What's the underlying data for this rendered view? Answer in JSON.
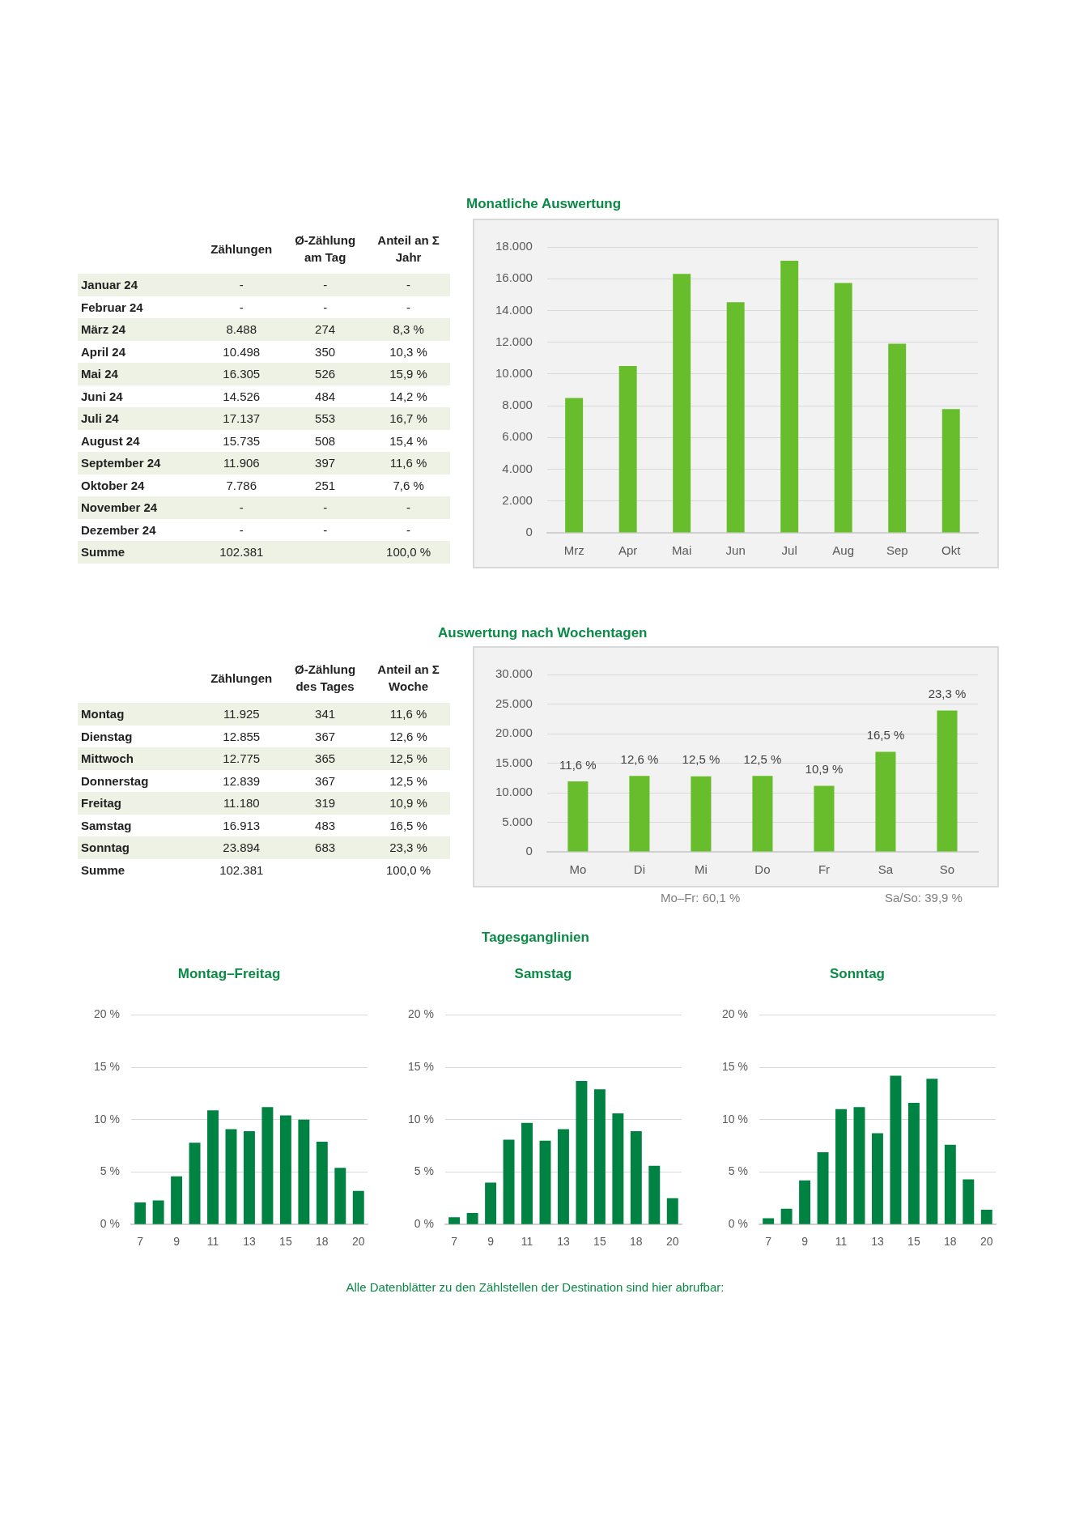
{
  "chart_data": [
    {
      "type": "other",
      "categories": [
        "Zählungen",
        "Ø-Zählung am Tag",
        "Anteil an Σ Jahr"
      ],
      "y_categories": [
        "Januar 24",
        "Februar 24",
        "März 24",
        "April 24",
        "Mai 24",
        "Juni 24",
        "Juli 24",
        "August 24",
        "September 24",
        "Oktober 24",
        "November 24",
        "Dezember 24",
        "Summe"
      ],
      "cell_labels": [
        [
          "-",
          "-",
          "-"
        ],
        [
          "-",
          "-",
          "-"
        ],
        [
          "8.488",
          "274",
          "8,3 %"
        ],
        [
          "10.498",
          "350",
          "10,3 %"
        ],
        [
          "16.305",
          "526",
          "15,9 %"
        ],
        [
          "14.526",
          "484",
          "14,2 %"
        ],
        [
          "17.137",
          "553",
          "16,7 %"
        ],
        [
          "15.735",
          "508",
          "15,4 %"
        ],
        [
          "11.906",
          "397",
          "11,6 %"
        ],
        [
          "7.786",
          "251",
          "7,6 %"
        ],
        [
          "-",
          "-",
          "-"
        ],
        [
          "-",
          "-",
          "-"
        ],
        [
          "102.381",
          null,
          "100,0 %"
        ]
      ]
    },
    {
      "type": "bar",
      "title": "Monatliche Auswertung",
      "categories": [
        "Mrz",
        "Apr",
        "Mai",
        "Jun",
        "Jul",
        "Aug",
        "Sep",
        "Okt"
      ],
      "values": [
        8488,
        10498,
        16305,
        14526,
        17137,
        15735,
        11906,
        7786
      ],
      "color": "#67bd2b",
      "ylim": [
        0,
        18000
      ],
      "yticks": [
        0,
        {
          "value": 2000,
          "label": "2.000"
        },
        {
          "value": 4000,
          "label": "4.000"
        },
        {
          "value": 6000,
          "label": "6.000"
        },
        {
          "value": 8000,
          "label": "8.000"
        },
        {
          "value": 10000,
          "label": "10.000"
        },
        {
          "value": 12000,
          "label": "12.000"
        },
        {
          "value": 14000,
          "label": "14.000"
        },
        {
          "value": 16000,
          "label": "16.000"
        },
        {
          "value": 18000,
          "label": "18.000"
        }
      ],
      "grid": "y"
    },
    {
      "type": "other",
      "categories": [
        "Zählungen",
        "Ø-Zählung des Tages",
        "Anteil an Σ Woche"
      ],
      "y_categories": [
        "Montag",
        "Dienstag",
        "Mittwoch",
        "Donnerstag",
        "Freitag",
        "Samstag",
        "Sonntag",
        "Summe"
      ],
      "cell_labels": [
        [
          "11.925",
          "341",
          "11,6 %"
        ],
        [
          "12.855",
          "367",
          "12,6 %"
        ],
        [
          "12.775",
          "365",
          "12,5 %"
        ],
        [
          "12.839",
          "367",
          "12,5 %"
        ],
        [
          "11.180",
          "319",
          "10,9 %"
        ],
        [
          "16.913",
          "483",
          "16,5 %"
        ],
        [
          "23.894",
          "683",
          "23,3 %"
        ],
        [
          "102.381",
          null,
          "100,0 %"
        ]
      ]
    },
    {
      "type": "bar",
      "title": "Auswertung nach Wochentagen",
      "categories": [
        "Mo",
        "Di",
        "Mi",
        "Do",
        "Fr",
        "Sa",
        "So"
      ],
      "values": [
        11925,
        12855,
        12775,
        12839,
        11180,
        16913,
        23894
      ],
      "color": "#67bd2b",
      "ylim": [
        0,
        30000
      ],
      "yticks": [
        0,
        {
          "value": 5000,
          "label": "5.000"
        },
        {
          "value": 10000,
          "label": "10.000"
        },
        {
          "value": 15000,
          "label": "15.000"
        },
        {
          "value": 20000,
          "label": "20.000"
        },
        {
          "value": 25000,
          "label": "25.000"
        },
        {
          "value": 30000,
          "label": "30.000"
        }
      ],
      "grid": "y",
      "annotations": [
        {
          "text": "11,6 %",
          "x": "Mo",
          "y": 11925
        },
        {
          "text": "12,6 %",
          "x": "Di",
          "y": 12855
        },
        {
          "text": "12,5 %",
          "x": "Mi",
          "y": 12775
        },
        {
          "text": "12,5 %",
          "x": "Do",
          "y": 12839
        },
        {
          "text": "10,9 %",
          "x": "Fr",
          "y": 11180
        },
        {
          "text": "16,5 %",
          "x": "Sa",
          "y": 16913
        },
        {
          "text": "23,3 %",
          "x": "So",
          "y": 23894
        },
        "Mo–Fr: 60,1 %",
        "Sa/So: 39,9 %"
      ]
    },
    {
      "type": "bar",
      "title": "Montag–Freitag",
      "annotations": [
        "Tagesganglinien"
      ],
      "categories": [
        "7",
        null,
        "9",
        null,
        "11",
        null,
        "13",
        null,
        "15",
        null,
        "18",
        null,
        "20"
      ],
      "values": [
        2.1,
        2.3,
        4.6,
        7.8,
        10.9,
        9.1,
        8.9,
        11.2,
        10.4,
        10.0,
        7.9,
        5.4,
        3.2
      ],
      "color": "#008242",
      "ylim": [
        0,
        20
      ],
      "yticks": [
        {
          "value": 0,
          "label": "0 %"
        },
        {
          "value": 5,
          "label": "5 %"
        },
        {
          "value": 10,
          "label": "10 %"
        },
        {
          "value": 15,
          "label": "15 %"
        },
        {
          "value": 20,
          "label": "20 %"
        }
      ],
      "grid": "y"
    },
    {
      "type": "bar",
      "title": "Samstag",
      "categories": [
        "7",
        null,
        "9",
        null,
        "11",
        null,
        "13",
        null,
        "15",
        null,
        "18",
        null,
        "20"
      ],
      "values": [
        0.7,
        1.1,
        4.0,
        8.1,
        9.7,
        8.0,
        9.1,
        13.7,
        12.9,
        10.6,
        8.9,
        5.6,
        2.5
      ],
      "color": "#008242",
      "ylim": [
        0,
        20
      ],
      "yticks": [
        {
          "value": 0,
          "label": "0 %"
        },
        {
          "value": 5,
          "label": "5 %"
        },
        {
          "value": 10,
          "label": "10 %"
        },
        {
          "value": 15,
          "label": "15 %"
        },
        {
          "value": 20,
          "label": "20 %"
        }
      ],
      "grid": "y"
    },
    {
      "type": "bar",
      "title": "Sonntag",
      "annotations": [
        "Alle Datenblätter zu den Zählstellen der Destination sind hier abrufbar:"
      ],
      "categories": [
        "7",
        null,
        "9",
        null,
        "11",
        null,
        "13",
        null,
        "15",
        null,
        "18",
        null,
        "20"
      ],
      "values": [
        0.6,
        1.5,
        4.2,
        6.9,
        11.0,
        11.2,
        8.7,
        14.2,
        11.6,
        13.9,
        7.6,
        4.3,
        1.4
      ],
      "color": "#008242",
      "ylim": [
        0,
        20
      ],
      "yticks": [
        {
          "value": 0,
          "label": "0 %"
        },
        {
          "value": 5,
          "label": "5 %"
        },
        {
          "value": 10,
          "label": "10 %"
        },
        {
          "value": 15,
          "label": "15 %"
        },
        {
          "value": 20,
          "label": "20 %"
        }
      ],
      "grid": "y"
    }
  ]
}
